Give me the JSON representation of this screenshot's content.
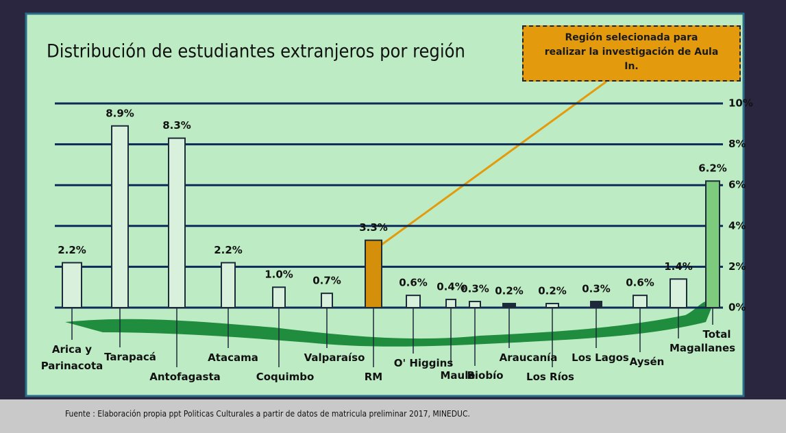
{
  "chart_data": {
    "type": "bar",
    "title": "Distribución de estudiantes extranjeros por región",
    "annotation": "Región selecionada para realizar la investigación de Aula In.",
    "source": "Fuente : Elaboración propia ppt Politicas Culturales a partir de datos de matricula preliminar 2017, MINEDUC.",
    "categories": [
      "Arica y Parinacota",
      "Tarapacá",
      "Antofagasta",
      "Atacama",
      "Coquimbo",
      "Valparaíso",
      "RM",
      "O' Higgins",
      "Maule",
      "Biobío",
      "Araucanía",
      "Los Ríos",
      "Los Lagos",
      "Aysén",
      "Magallanes",
      "Total"
    ],
    "values": [
      2.2,
      8.9,
      8.3,
      2.2,
      1.0,
      0.7,
      3.3,
      0.6,
      0.4,
      0.3,
      0.2,
      0.2,
      0.3,
      0.6,
      1.4,
      6.2
    ],
    "value_labels": [
      "2.2%",
      "8.9%",
      "8.3%",
      "2.2%",
      "1.0%",
      "0.7%",
      "3.3%",
      "0.6%",
      "0.4%",
      "0.3%",
      "0.2%",
      "0.2%",
      "0.3%",
      "0.6%",
      "1.4%",
      "6.2%"
    ],
    "colors": [
      "#d9f0dc",
      "#d9f0dc",
      "#d9f0dc",
      "#d9f0dc",
      "#d9f0dc",
      "#d9f0dc",
      "#d4900a",
      "#d9f0dc",
      "#d9f0dc",
      "#d9f0dc",
      "#1c2a3a",
      "#d9f0dc",
      "#1c2a3a",
      "#d9f0dc",
      "#d9f0dc",
      "#7dcb7d"
    ],
    "ylim": [
      0,
      10
    ],
    "yticks": [
      {
        "value": 0,
        "label": "0%"
      },
      {
        "value": 2,
        "label": "2%"
      },
      {
        "value": 4,
        "label": "4%"
      },
      {
        "value": 6,
        "label": "6%"
      },
      {
        "value": 8,
        "label": "8%"
      },
      {
        "value": 10,
        "label": "10%"
      }
    ],
    "grid": true
  }
}
